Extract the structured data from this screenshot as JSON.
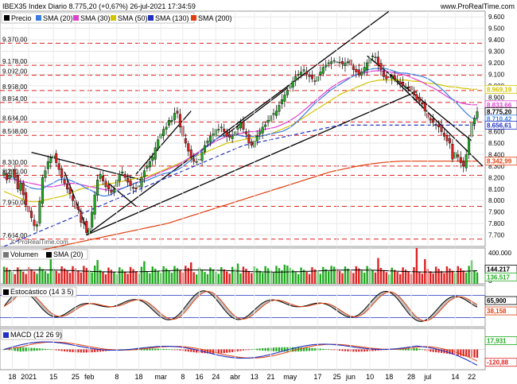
{
  "header": {
    "title": "IBEX35 Index Diario 8.775,20 (+0,67%) 26-jul-2021 17:34:59",
    "site": "www.ProRealTime.com",
    "watermark": "© ProRealTime.com"
  },
  "colors": {
    "price": "#000000",
    "sma20": "#3a7de0",
    "sma30": "#e040d0",
    "sma50": "#d4c400",
    "sma130": "#2030c0",
    "sma200": "#e04010",
    "up": "#22aa22",
    "down": "#dd2222",
    "refline": "#dd2222",
    "trend": "#000000"
  },
  "chart_data": [
    {
      "type": "candlestick",
      "title": "IBEX35 Index Diario 8.775,20 (+0,67%) 26-jul-2021 17:34:59",
      "legend": [
        "Precio",
        "SMA (20)",
        "SMA (30)",
        "SMA (50)",
        "SMA (130)",
        "SMA (200)"
      ],
      "ylim": [
        7600,
        9650
      ],
      "y_ticks": [
        "9.600",
        "9.500",
        "9.400",
        "9.300",
        "9.200",
        "9.100",
        "9.000",
        "8.900",
        "8.800",
        "8.700",
        "8.600",
        "8.500",
        "8.400",
        "8.300",
        "8.200",
        "8.100",
        "8.000",
        "7.900",
        "7.800",
        "7.700"
      ],
      "left_levels": [
        {
          "label": "9.370,00",
          "value": 9370
        },
        {
          "label": "9.178,00",
          "value": 9178
        },
        {
          "label": "9.092,00",
          "value": 9092
        },
        {
          "label": "8.958,00",
          "value": 8958
        },
        {
          "label": "8.854,00",
          "value": 8854
        },
        {
          "label": "8.684,00",
          "value": 8684
        },
        {
          "label": "8.568,00",
          "value": 8568
        },
        {
          "label": "8.300,00",
          "value": 8300
        },
        {
          "label": "8.220,00",
          "value": 8220
        },
        {
          "label": "7.950,00",
          "value": 7950
        },
        {
          "label": "7.664,00",
          "value": 7664
        }
      ],
      "right_tags": [
        {
          "label": "8.969,19",
          "value": 8969,
          "series": "sma50"
        },
        {
          "label": "8.833,66",
          "value": 8834,
          "series": "sma30"
        },
        {
          "label": "8.775,20",
          "value": 8775,
          "series": "price"
        },
        {
          "label": "8.710,42",
          "value": 8710,
          "series": "sma20"
        },
        {
          "label": "8.656,61",
          "value": 8657,
          "series": "sma130"
        },
        {
          "label": "8.342,99",
          "value": 8343,
          "series": "sma200"
        }
      ],
      "x_labels": [
        {
          "label": "18",
          "i": 3
        },
        {
          "label": "2021",
          "i": 9
        },
        {
          "label": "15",
          "i": 18
        },
        {
          "label": "25",
          "i": 26
        },
        {
          "label": "feb",
          "i": 31
        },
        {
          "label": "8",
          "i": 41
        },
        {
          "label": "18",
          "i": 49
        },
        {
          "label": "mar",
          "i": 57
        },
        {
          "label": "8",
          "i": 65
        },
        {
          "label": "16",
          "i": 71
        },
        {
          "label": "24",
          "i": 77
        },
        {
          "label": "abr",
          "i": 84
        },
        {
          "label": "13",
          "i": 91
        },
        {
          "label": "21",
          "i": 97
        },
        {
          "label": "may",
          "i": 104
        },
        {
          "label": "17",
          "i": 114
        },
        {
          "label": "25",
          "i": 121
        },
        {
          "label": "jun",
          "i": 126
        },
        {
          "label": "10",
          "i": 133
        },
        {
          "label": "18",
          "i": 140
        },
        {
          "label": "28",
          "i": 148
        },
        {
          "label": "jul",
          "i": 154
        },
        {
          "label": "14",
          "i": 164
        },
        {
          "label": "22",
          "i": 170
        }
      ],
      "close": [
        8240,
        8180,
        8220,
        8270,
        8200,
        8100,
        8150,
        8050,
        7960,
        7900,
        7850,
        7780,
        7790,
        7990,
        8200,
        8260,
        8340,
        8370,
        8390,
        8330,
        8270,
        8200,
        8150,
        8100,
        8060,
        8000,
        7930,
        7920,
        7810,
        7800,
        7720,
        7760,
        7900,
        8050,
        8180,
        8230,
        8170,
        8120,
        8100,
        8070,
        8100,
        8180,
        8230,
        8250,
        8200,
        8160,
        8130,
        8110,
        8100,
        8130,
        8200,
        8260,
        8300,
        8340,
        8380,
        8460,
        8530,
        8580,
        8620,
        8640,
        8700,
        8700,
        8760,
        8760,
        8640,
        8560,
        8500,
        8430,
        8380,
        8340,
        8340,
        8360,
        8420,
        8480,
        8520,
        8560,
        8580,
        8620,
        8620,
        8640,
        8600,
        8560,
        8550,
        8560,
        8600,
        8640,
        8680,
        8620,
        8580,
        8500,
        8480,
        8520,
        8560,
        8600,
        8640,
        8660,
        8700,
        8740,
        8760,
        8780,
        8830,
        8880,
        8920,
        8960,
        9000,
        9040,
        9080,
        9100,
        9120,
        9140,
        9100,
        9080,
        9060,
        9040,
        9080,
        9120,
        9160,
        9180,
        9200,
        9210,
        9220,
        9210,
        9200,
        9190,
        9200,
        9210,
        9180,
        9140,
        9120,
        9100,
        9120,
        9160,
        9200,
        9240,
        9260,
        9250,
        9180,
        9140,
        9080,
        9060,
        9070,
        9080,
        9060,
        9040,
        9020,
        9000,
        8990,
        8980,
        8960,
        8920,
        8880,
        8860,
        8840,
        8780,
        8720,
        8700,
        8680,
        8660,
        8640,
        8600,
        8560,
        8520,
        8500,
        8360,
        8420,
        8380,
        8330,
        8300,
        8400,
        8540,
        8680,
        8716,
        8775
      ],
      "sma20_mid": [
        8230,
        8210,
        8190,
        8160,
        8130,
        8110,
        8100,
        8100,
        8130,
        8150,
        8180,
        8190,
        8180,
        8160,
        8140,
        8110,
        8090,
        8060,
        8040,
        8040,
        8060,
        8090,
        8110,
        8130,
        8150,
        8160,
        8170,
        8190,
        8210,
        8230,
        8240,
        8250,
        8270,
        8300,
        8340,
        8380,
        8420,
        8460,
        8500,
        8540,
        8560,
        8570,
        8570,
        8570,
        8560,
        8560,
        8560,
        8560,
        8570,
        8580,
        8590,
        8600,
        8620,
        8650,
        8690,
        8740,
        8790,
        8840,
        8880,
        8920,
        8960,
        8990,
        9020,
        9050,
        9080,
        9100,
        9120,
        9140,
        9150,
        9150,
        9150,
        9140,
        9120,
        9110,
        9110,
        9100,
        9090,
        9080,
        9060,
        9030,
        8990,
        8950,
        8900,
        8860,
        8810,
        8760,
        8720,
        8710
      ],
      "sma30_mid": [
        8200,
        8190,
        8180,
        8170,
        8160,
        8150,
        8140,
        8130,
        8120,
        8120,
        8130,
        8140,
        8150,
        8150,
        8140,
        8130,
        8120,
        8110,
        8100,
        8090,
        8090,
        8100,
        8110,
        8130,
        8150,
        8170,
        8190,
        8210,
        8230,
        8250,
        8270,
        8290,
        8310,
        8340,
        8370,
        8400,
        8430,
        8460,
        8490,
        8520,
        8540,
        8560,
        8570,
        8580,
        8590,
        8600,
        8600,
        8610,
        8620,
        8630,
        8640,
        8660,
        8680,
        8710,
        8740,
        8780,
        8820,
        8860,
        8900,
        8940,
        8980,
        9010,
        9040,
        9060,
        9080,
        9100,
        9110,
        9120,
        9130,
        9130,
        9130,
        9120,
        9110,
        9100,
        9090,
        9070,
        9050,
        9030,
        9000,
        8980,
        8950,
        8920,
        8890,
        8870,
        8850,
        8840,
        8834,
        8834
      ],
      "sma50_mid": [
        8080,
        8060,
        8040,
        8020,
        8000,
        7990,
        7990,
        8000,
        8010,
        8020,
        8030,
        8040,
        8060,
        8080,
        8100,
        8110,
        8120,
        8130,
        8140,
        8150,
        8150,
        8160,
        8170,
        8180,
        8190,
        8200,
        8210,
        8220,
        8240,
        8260,
        8280,
        8300,
        8320,
        8340,
        8360,
        8380,
        8400,
        8420,
        8440,
        8460,
        8480,
        8500,
        8510,
        8520,
        8530,
        8540,
        8550,
        8560,
        8570,
        8580,
        8600,
        8620,
        8640,
        8660,
        8690,
        8720,
        8750,
        8780,
        8810,
        8840,
        8870,
        8900,
        8930,
        8950,
        8970,
        8990,
        9010,
        9030,
        9040,
        9050,
        9050,
        9050,
        9050,
        9050,
        9050,
        9040,
        9040,
        9030,
        9020,
        9020,
        9010,
        9000,
        8990,
        8990,
        8980,
        8975,
        8970,
        8969
      ],
      "sma130_mid": [
        7600,
        7620,
        7640,
        7660,
        7680,
        7700,
        7720,
        7740,
        7760,
        7780,
        7800,
        7820,
        7840,
        7860,
        7880,
        7900,
        7920,
        7940,
        7960,
        7980,
        8000,
        8020,
        8040,
        8060,
        8080,
        8100,
        8120,
        8140,
        8160,
        8180,
        8200,
        8220,
        8240,
        8260,
        8280,
        8300,
        8320,
        8340,
        8360,
        8380,
        8400,
        8420,
        8440,
        8460,
        8480,
        8490,
        8500,
        8510,
        8520,
        8530,
        8540,
        8550,
        8560,
        8570,
        8580,
        8590,
        8600,
        8610,
        8620,
        8630,
        8640,
        8650,
        8655,
        8657,
        8657,
        8657,
        8657,
        8657,
        8657,
        8657,
        8657,
        8657,
        8657,
        8657,
        8657,
        8657,
        8657,
        8657,
        8657,
        8657,
        8657,
        8657,
        8657,
        8657,
        8657,
        8657,
        8657,
        8657
      ],
      "sma200_mid": [
        7500,
        7510,
        7520,
        7530,
        7540,
        7550,
        7560,
        7570,
        7580,
        7590,
        7600,
        7610,
        7620,
        7630,
        7640,
        7650,
        7660,
        7670,
        7680,
        7690,
        7700,
        7710,
        7720,
        7730,
        7740,
        7750,
        7760,
        7770,
        7780,
        7790,
        7800,
        7815,
        7830,
        7845,
        7860,
        7875,
        7890,
        7905,
        7920,
        7935,
        7950,
        7965,
        7980,
        7995,
        8010,
        8025,
        8040,
        8055,
        8070,
        8085,
        8100,
        8115,
        8130,
        8145,
        8160,
        8175,
        8190,
        8205,
        8220,
        8235,
        8250,
        8260,
        8270,
        8280,
        8290,
        8300,
        8308,
        8316,
        8322,
        8328,
        8333,
        8337,
        8340,
        8343,
        8343,
        8343,
        8343,
        8343,
        8343,
        8343,
        8343,
        8343,
        8343,
        8343,
        8343,
        8343,
        8343,
        8343
      ]
    },
    {
      "type": "bar",
      "title": "Volumen",
      "legend": [
        "Volumen",
        "SMA (20)"
      ],
      "ylim": [
        0,
        400000
      ],
      "y_ticks": [
        "400.000",
        "0"
      ],
      "right_tags": [
        {
          "label": "144.217",
          "value": 144217
        },
        {
          "label": "136.517",
          "value": 136517
        }
      ]
    },
    {
      "type": "line",
      "title": "Estocástico (14 3 5)",
      "ylim": [
        0,
        100
      ],
      "levels": [
        80,
        20
      ],
      "right_tags": [
        {
          "label": "65,900",
          "value": 65.9
        },
        {
          "label": "38,158",
          "value": 38.158
        }
      ]
    },
    {
      "type": "line",
      "title": "MACD (12 26 9)",
      "right_tags": [
        {
          "label": "17,931",
          "value": 17.931
        },
        {
          "label": "-120,88",
          "value": -120.88
        }
      ]
    }
  ]
}
